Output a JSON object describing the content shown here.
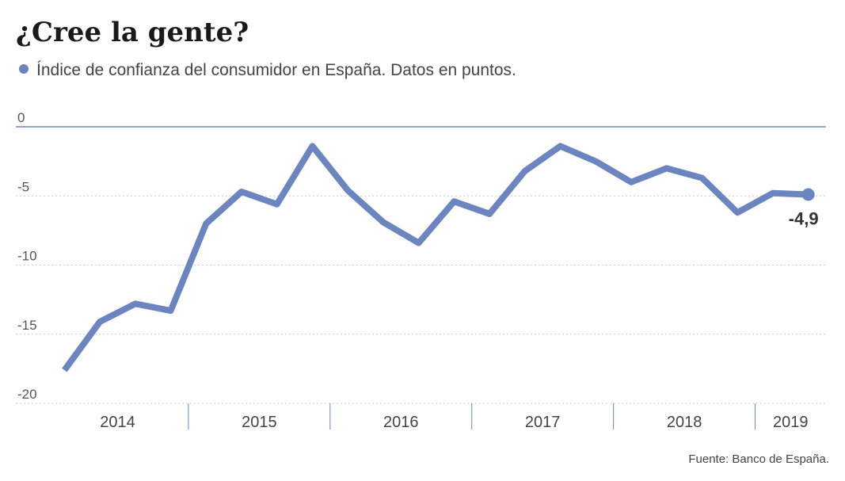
{
  "chart_data": {
    "type": "line",
    "title": "¿Cree la gente?",
    "subtitle": "Índice de confianza del consumidor en España. Datos en puntos.",
    "source": "Fuente: Banco de España.",
    "categories": [
      null,
      "2014",
      null,
      null,
      null,
      "2015",
      null,
      null,
      null,
      "2016",
      null,
      null,
      null,
      "2017",
      null,
      null,
      null,
      "2018",
      null,
      null,
      "2019",
      null
    ],
    "series": [
      {
        "name": "Índice de confianza del consumidor en España",
        "color": "#6b85c0",
        "values": [
          -17.6,
          -14.1,
          -12.8,
          -13.3,
          -7.0,
          -4.7,
          -5.6,
          -1.4,
          -4.6,
          -6.9,
          -8.4,
          -5.4,
          -6.3,
          -3.2,
          -1.4,
          -2.5,
          -4.0,
          -3.0,
          -3.7,
          -6.2,
          -4.8,
          -4.9
        ],
        "value_labels": [
          null,
          null,
          null,
          null,
          null,
          null,
          null,
          null,
          null,
          null,
          null,
          null,
          null,
          null,
          null,
          null,
          null,
          null,
          null,
          null,
          null,
          "-4,9"
        ]
      }
    ],
    "ylim": [
      -20,
      0
    ],
    "yticks": [
      0,
      -5,
      -10,
      -15,
      -20
    ],
    "grid": true
  }
}
